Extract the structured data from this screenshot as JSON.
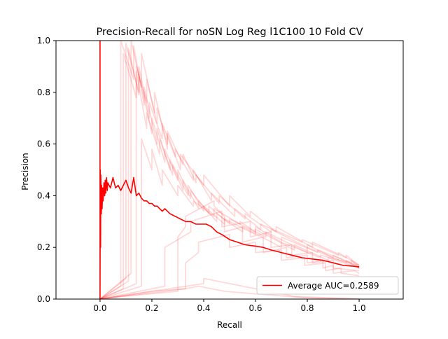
{
  "chart_data": {
    "type": "line",
    "title": "Precision-Recall for noSN Log Reg l1C100 10 Fold CV",
    "xlabel": "Recall",
    "ylabel": "Precision",
    "xlim": [
      -0.17,
      1.17
    ],
    "ylim": [
      0,
      1
    ],
    "x_ticks": [
      "0.0",
      "0.2",
      "0.4",
      "0.6",
      "0.8",
      "1.0"
    ],
    "y_ticks": [
      "0.0",
      "0.2",
      "0.4",
      "0.6",
      "0.8",
      "1.0"
    ],
    "x_tick_values": [
      0,
      0.2,
      0.4,
      0.6,
      0.8,
      1.0
    ],
    "y_tick_values": [
      0,
      0.2,
      0.4,
      0.6,
      0.8,
      1.0
    ],
    "grid": false,
    "legend": {
      "position": "lower-right",
      "entries": [
        "Average AUC=0.2589"
      ]
    },
    "colors": {
      "average": "#ff0000",
      "folds": "#ff0000"
    },
    "fold_opacity": 0.15,
    "series": [
      {
        "name": "Average AUC=0.2589",
        "x": [
          0,
          0,
          0.001,
          0.002,
          0.003,
          0.005,
          0.006,
          0.008,
          0.01,
          0.012,
          0.015,
          0.018,
          0.02,
          0.022,
          0.025,
          0.028,
          0.03,
          0.035,
          0.04,
          0.045,
          0.05,
          0.06,
          0.07,
          0.08,
          0.09,
          0.1,
          0.11,
          0.12,
          0.13,
          0.14,
          0.15,
          0.16,
          0.17,
          0.18,
          0.19,
          0.2,
          0.21,
          0.22,
          0.23,
          0.24,
          0.25,
          0.27,
          0.29,
          0.31,
          0.33,
          0.35,
          0.37,
          0.39,
          0.41,
          0.43,
          0.45,
          0.47,
          0.5,
          0.53,
          0.56,
          0.6,
          0.63,
          0.66,
          0.7,
          0.74,
          0.78,
          0.82,
          0.86,
          0.9,
          0.94,
          0.97,
          1.0
        ],
        "y": [
          1.0,
          0.0,
          0.5,
          0.2,
          0.48,
          0.33,
          0.44,
          0.35,
          0.43,
          0.38,
          0.45,
          0.4,
          0.46,
          0.41,
          0.47,
          0.42,
          0.45,
          0.44,
          0.43,
          0.45,
          0.47,
          0.43,
          0.44,
          0.42,
          0.44,
          0.46,
          0.43,
          0.41,
          0.47,
          0.4,
          0.41,
          0.39,
          0.38,
          0.38,
          0.37,
          0.37,
          0.36,
          0.36,
          0.35,
          0.34,
          0.35,
          0.33,
          0.32,
          0.31,
          0.3,
          0.3,
          0.29,
          0.29,
          0.29,
          0.28,
          0.26,
          0.25,
          0.23,
          0.22,
          0.21,
          0.205,
          0.2,
          0.19,
          0.18,
          0.17,
          0.16,
          0.155,
          0.15,
          0.14,
          0.13,
          0.128,
          0.125
        ]
      },
      {
        "x": [
          0,
          0.08,
          0.08,
          0.13,
          0.13,
          0.17,
          0.17,
          0.22,
          0.22,
          0.27,
          0.27,
          0.32,
          0.32,
          0.38,
          0.38,
          0.45,
          0.45,
          0.55,
          0.55,
          0.7,
          0.7,
          0.85,
          0.85,
          1.0
        ],
        "y": [
          0,
          0.05,
          1.0,
          0.85,
          0.98,
          0.75,
          0.82,
          0.6,
          0.66,
          0.5,
          0.54,
          0.42,
          0.46,
          0.35,
          0.38,
          0.3,
          0.33,
          0.26,
          0.28,
          0.2,
          0.22,
          0.16,
          0.17,
          0.13
        ]
      },
      {
        "x": [
          0,
          0.1,
          0.1,
          0.15,
          0.15,
          0.19,
          0.19,
          0.24,
          0.24,
          0.29,
          0.29,
          0.36,
          0.36,
          0.43,
          0.43,
          0.52,
          0.52,
          0.62,
          0.62,
          0.78,
          0.78,
          0.92,
          0.92,
          1.0
        ],
        "y": [
          0,
          0.08,
          0.99,
          0.8,
          0.9,
          0.7,
          0.76,
          0.62,
          0.68,
          0.55,
          0.58,
          0.46,
          0.5,
          0.38,
          0.41,
          0.32,
          0.35,
          0.27,
          0.29,
          0.22,
          0.23,
          0.17,
          0.18,
          0.13
        ]
      },
      {
        "x": [
          0,
          0.12,
          0.12,
          0.16,
          0.16,
          0.21,
          0.21,
          0.26,
          0.26,
          0.31,
          0.31,
          0.4,
          0.4,
          0.5,
          0.5,
          0.58,
          0.58,
          0.68,
          0.68,
          0.82,
          0.82,
          0.95,
          0.95,
          1.0
        ],
        "y": [
          0,
          0.1,
          1.0,
          0.82,
          0.95,
          0.72,
          0.8,
          0.58,
          0.64,
          0.5,
          0.56,
          0.44,
          0.48,
          0.36,
          0.4,
          0.32,
          0.34,
          0.26,
          0.28,
          0.2,
          0.22,
          0.16,
          0.17,
          0.13
        ]
      },
      {
        "x": [
          0,
          0.09,
          0.09,
          0.14,
          0.14,
          0.18,
          0.18,
          0.23,
          0.23,
          0.28,
          0.28,
          0.34,
          0.34,
          0.4,
          0.4,
          0.48,
          0.48,
          0.6,
          0.6,
          0.75,
          0.75,
          0.88,
          0.88,
          1.0
        ],
        "y": [
          0,
          0.04,
          0.95,
          0.78,
          0.88,
          0.66,
          0.72,
          0.56,
          0.62,
          0.48,
          0.52,
          0.4,
          0.44,
          0.34,
          0.36,
          0.29,
          0.31,
          0.25,
          0.27,
          0.19,
          0.21,
          0.15,
          0.16,
          0.12
        ]
      },
      {
        "x": [
          0,
          0.14,
          0.14,
          0.18,
          0.18,
          0.22,
          0.22,
          0.26,
          0.26,
          0.32,
          0.32,
          0.37,
          0.37,
          0.46,
          0.46,
          0.56,
          0.56,
          0.66,
          0.66,
          0.8,
          0.8,
          0.9,
          0.9,
          1.0
        ],
        "y": [
          0,
          0.06,
          0.9,
          0.76,
          0.85,
          0.68,
          0.74,
          0.6,
          0.65,
          0.52,
          0.56,
          0.45,
          0.48,
          0.37,
          0.4,
          0.31,
          0.33,
          0.26,
          0.27,
          0.2,
          0.21,
          0.16,
          0.17,
          0.12
        ]
      },
      {
        "x": [
          0,
          0.11,
          0.11,
          0.15,
          0.15,
          0.2,
          0.2,
          0.25,
          0.25,
          0.3,
          0.3,
          0.35,
          0.35,
          0.42,
          0.42,
          0.5,
          0.5,
          0.64,
          0.64,
          0.8,
          0.8,
          0.95,
          0.95,
          1.0
        ],
        "y": [
          0,
          0.07,
          0.97,
          0.79,
          0.87,
          0.64,
          0.7,
          0.53,
          0.58,
          0.46,
          0.5,
          0.39,
          0.42,
          0.33,
          0.36,
          0.29,
          0.31,
          0.24,
          0.26,
          0.18,
          0.2,
          0.14,
          0.15,
          0.12
        ]
      },
      {
        "x": [
          0,
          0.16,
          0.16,
          0.2,
          0.2,
          0.24,
          0.24,
          0.3,
          0.3,
          0.36,
          0.36,
          0.44,
          0.44,
          0.54,
          0.54,
          0.6,
          0.6,
          0.7,
          0.7,
          0.84,
          0.84,
          0.97,
          0.97,
          1.0
        ],
        "y": [
          0,
          0.05,
          0.62,
          0.5,
          0.58,
          0.44,
          0.5,
          0.4,
          0.44,
          0.36,
          0.38,
          0.32,
          0.35,
          0.29,
          0.3,
          0.26,
          0.28,
          0.22,
          0.24,
          0.18,
          0.19,
          0.14,
          0.15,
          0.12
        ]
      },
      {
        "x": [
          0,
          0.08,
          0.3,
          0.3,
          0.33,
          0.33,
          0.44,
          0.44,
          0.48,
          0.48,
          0.55,
          0.55,
          0.63,
          0.63,
          0.72,
          0.72,
          0.8,
          0.8,
          0.86,
          0.86,
          0.9,
          0.9,
          0.98,
          1.0
        ],
        "y": [
          0,
          0.01,
          0.03,
          0.24,
          0.28,
          0.32,
          0.38,
          0.36,
          0.32,
          0.26,
          0.28,
          0.22,
          0.24,
          0.18,
          0.2,
          0.16,
          0.17,
          0.14,
          0.15,
          0.12,
          0.13,
          0.1,
          0.11,
          0.1
        ]
      },
      {
        "x": [
          0,
          0.1,
          0.25,
          0.25,
          0.35,
          0.35,
          0.47,
          0.47,
          0.58,
          0.58,
          0.66,
          0.66,
          0.74,
          0.74,
          0.82,
          0.82,
          0.9,
          0.9,
          1.0
        ],
        "y": [
          0,
          0.02,
          0.05,
          0.2,
          0.26,
          0.3,
          0.34,
          0.28,
          0.3,
          0.24,
          0.26,
          0.2,
          0.21,
          0.17,
          0.18,
          0.14,
          0.15,
          0.12,
          0.11
        ]
      },
      {
        "x": [
          0,
          0.2,
          0.33,
          0.33,
          0.38,
          0.38,
          0.5,
          0.5,
          0.6,
          0.6,
          0.7,
          0.7,
          0.79,
          0.79,
          0.87,
          0.87,
          0.93,
          0.93,
          1.0
        ],
        "y": [
          0,
          0.03,
          0.04,
          0.14,
          0.18,
          0.22,
          0.25,
          0.2,
          0.22,
          0.18,
          0.19,
          0.15,
          0.16,
          0.13,
          0.14,
          0.11,
          0.12,
          0.1,
          0.09
        ]
      },
      {
        "x": [
          0,
          0.4,
          0.4,
          0.5,
          0.6,
          0.75,
          1.0
        ],
        "y": [
          0,
          0.06,
          0.08,
          0.06,
          0.04,
          0.01,
          0.0
        ]
      },
      {
        "x": [
          0,
          0.33,
          0.38,
          0.48,
          0.6,
          0.8,
          1.0
        ],
        "y": [
          0,
          0.04,
          0.05,
          0.03,
          0.02,
          0.005,
          0.0
        ]
      }
    ]
  }
}
